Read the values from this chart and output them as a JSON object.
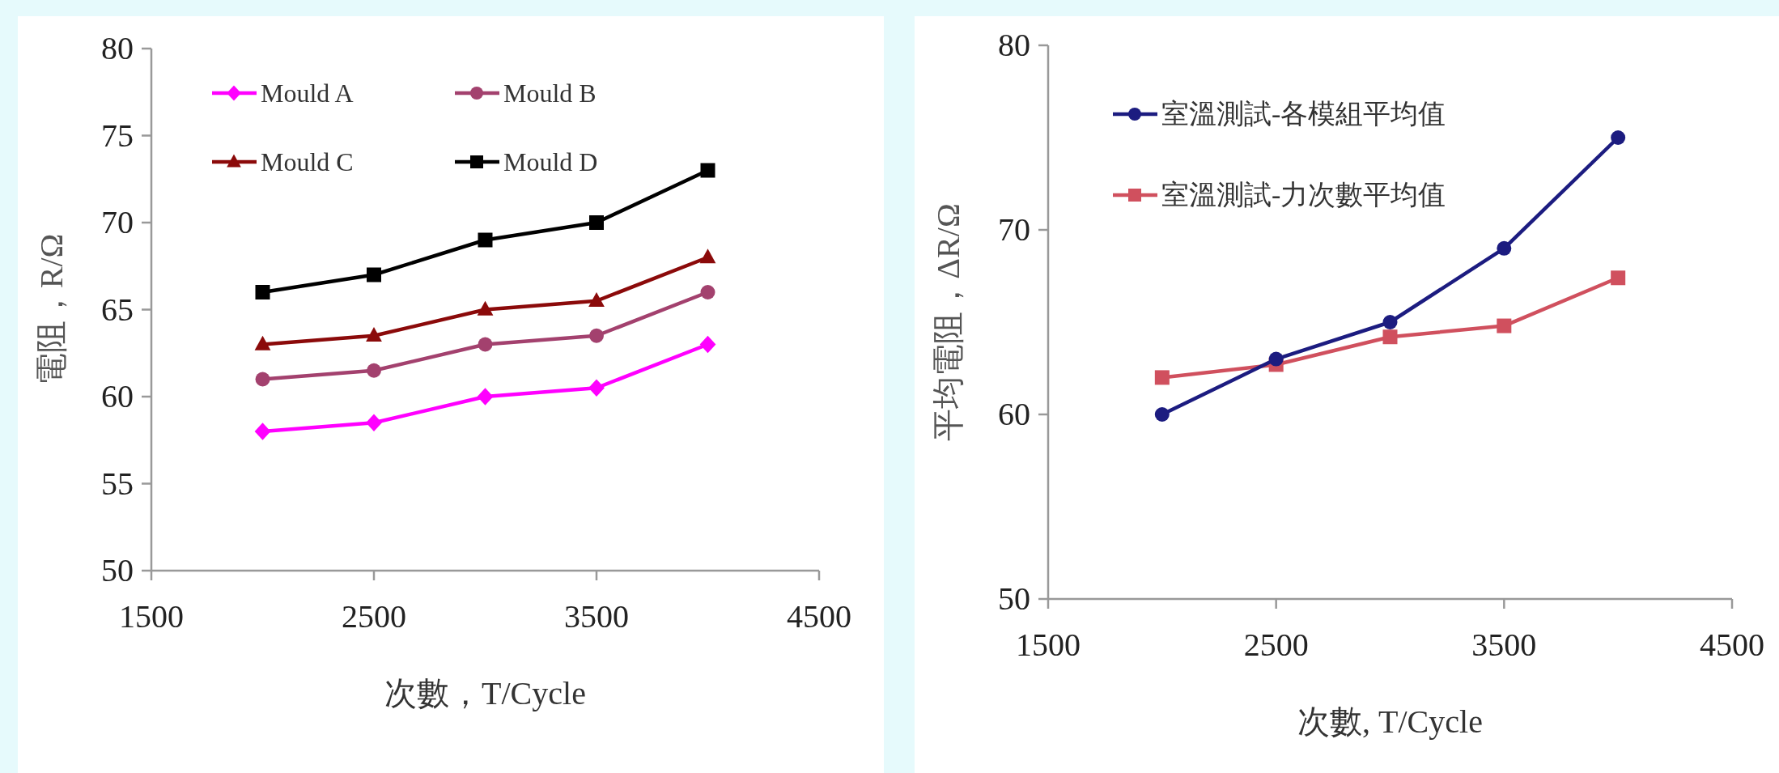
{
  "chart_data": [
    {
      "type": "line",
      "xlabel": "次數，T/Cycle",
      "ylabel": "電阻，R/Ω",
      "x": [
        2000,
        2500,
        3000,
        3500,
        4000
      ],
      "xlim": [
        1500,
        4500
      ],
      "ylim": [
        50,
        80
      ],
      "xticks": [
        1500,
        2500,
        3500,
        4500
      ],
      "yticks": [
        50,
        55,
        60,
        65,
        70,
        75,
        80
      ],
      "legend": "top left",
      "series": [
        {
          "name": "Mould A",
          "color": "#ff00ff",
          "marker": "diamond",
          "values": [
            58,
            58.5,
            60,
            60.5,
            63
          ]
        },
        {
          "name": "Mould B",
          "color": "#a3416e",
          "marker": "circle",
          "values": [
            61,
            61.5,
            63,
            63.5,
            66
          ]
        },
        {
          "name": "Mould C",
          "color": "#8b0a0a",
          "marker": "triangle",
          "values": [
            63,
            63.5,
            65,
            65.5,
            68
          ]
        },
        {
          "name": "Mould D",
          "color": "#000000",
          "marker": "square",
          "values": [
            66,
            67,
            69,
            70,
            73
          ]
        }
      ]
    },
    {
      "type": "line",
      "xlabel": "次數, T/Cycle",
      "ylabel": "平均電阻，ΔR/Ω",
      "x": [
        2000,
        2500,
        3000,
        3500,
        4000
      ],
      "xlim": [
        1500,
        4500
      ],
      "ylim": [
        50,
        80
      ],
      "xticks": [
        1500,
        2500,
        3500,
        4500
      ],
      "yticks": [
        50,
        60,
        70,
        80
      ],
      "legend": "top left",
      "series": [
        {
          "name": "室溫測試-各模組平均值",
          "color": "#1c1c80",
          "marker": "circle",
          "values": [
            60,
            63,
            65,
            69,
            75
          ]
        },
        {
          "name": "室溫測試-力次數平均值",
          "color": "#d0505e",
          "marker": "square",
          "values": [
            62,
            62.7,
            64.2,
            64.8,
            67.4
          ]
        }
      ]
    }
  ]
}
